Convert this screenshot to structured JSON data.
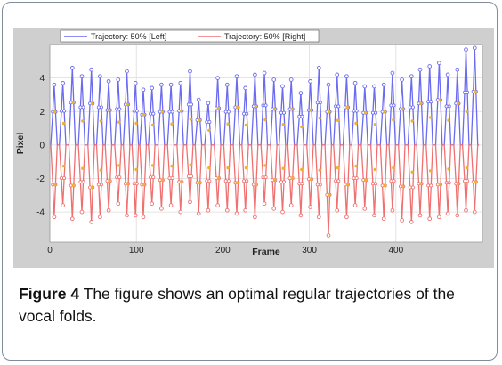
{
  "caption": {
    "label": "Figure 4",
    "text": " The figure shows an optimal regular trajectories of the vocal folds."
  },
  "chart_data": {
    "type": "line",
    "xlabel": "Frame",
    "ylabel": "Pixel",
    "xlim": [
      0,
      500
    ],
    "ylim": [
      -5.8,
      6
    ],
    "xticks": [
      0,
      100,
      200,
      300,
      400
    ],
    "yticks": [
      -4,
      -2,
      0,
      2,
      4
    ],
    "legend_position": "top",
    "colors": {
      "left": "#6b6bf0",
      "right": "#f07070",
      "markers": "#f0b030",
      "background": "#d4d4d4",
      "plot": "#ffffff",
      "grid": "#dcdcdc"
    },
    "series": [
      {
        "name": "Trajectory: 50% [Left]",
        "peak_frames": [
          5,
          15,
          26,
          37,
          48,
          58,
          68,
          79,
          89,
          99,
          108,
          118,
          129,
          140,
          151,
          162,
          172,
          183,
          194,
          205,
          216,
          226,
          237,
          248,
          259,
          269,
          279,
          290,
          301,
          311,
          322,
          332,
          343,
          353,
          364,
          375,
          386,
          396,
          407,
          418,
          428,
          439,
          450,
          460,
          471,
          481,
          491
        ],
        "peak_values": [
          3.6,
          3.7,
          4.6,
          4.1,
          4.5,
          4.1,
          3.8,
          3.9,
          4.4,
          3.7,
          3.3,
          3.4,
          3.6,
          3.6,
          3.7,
          4.4,
          2.7,
          2.5,
          4.0,
          3.6,
          4.1,
          3.4,
          4.2,
          4.3,
          3.9,
          3.5,
          3.9,
          3.1,
          3.8,
          4.6,
          3.6,
          4.2,
          4.1,
          3.7,
          3.5,
          3.5,
          3.6,
          4.3,
          3.9,
          4.1,
          4.5,
          4.7,
          4.9,
          4.2,
          4.5,
          5.7,
          5.8
        ]
      },
      {
        "name": "Trajectory: 50% [Right]",
        "peak_frames": [
          5,
          15,
          26,
          37,
          48,
          58,
          68,
          79,
          89,
          99,
          108,
          118,
          129,
          140,
          151,
          162,
          172,
          183,
          194,
          205,
          216,
          226,
          237,
          248,
          259,
          269,
          279,
          290,
          301,
          311,
          322,
          332,
          343,
          353,
          364,
          375,
          386,
          396,
          407,
          418,
          428,
          439,
          450,
          460,
          471,
          481,
          491
        ],
        "peak_values": [
          -4.3,
          -3.6,
          -4.4,
          -4.0,
          -4.6,
          -4.3,
          -3.9,
          -3.5,
          -4.2,
          -4.2,
          -4.3,
          -3.5,
          -3.8,
          -3.6,
          -4.0,
          -3.4,
          -4.1,
          -3.9,
          -3.6,
          -3.9,
          -4.1,
          -3.9,
          -4.3,
          -3.5,
          -3.8,
          -4.0,
          -3.6,
          -4.2,
          -3.7,
          -4.3,
          -5.4,
          -3.9,
          -4.3,
          -3.6,
          -3.8,
          -4.2,
          -4.4,
          -3.9,
          -4.5,
          -4.6,
          -4.2,
          -4.4,
          -4.3,
          -4.1,
          -4.2,
          -3.9,
          -4.0
        ]
      }
    ]
  }
}
